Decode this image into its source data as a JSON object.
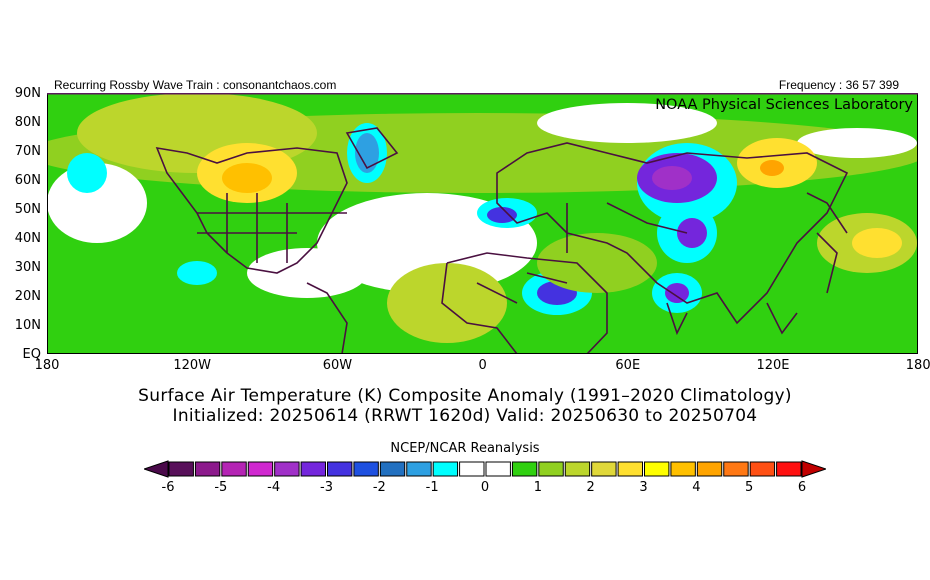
{
  "header": {
    "left": "Recurring Rossby Wave Train : consonantchaos.com",
    "right": "Frequency : 36 57 399"
  },
  "map": {
    "lab_label": "NOAA Physical Sciences Laboratory",
    "lat_labels": [
      "90N",
      "80N",
      "70N",
      "60N",
      "50N",
      "40N",
      "30N",
      "20N",
      "10N",
      "EQ"
    ],
    "lon_labels": [
      "180",
      "120W",
      "60W",
      "0",
      "60E",
      "120E",
      "180"
    ]
  },
  "title": {
    "line1": "Surface Air Temperature (K) Composite Anomaly (1991–2020 Climatology)",
    "line2": "Initialized: 20250614 (RRWT 1620d) Valid: 20250630 to 20250704"
  },
  "colorbar": {
    "title": "NCEP/NCAR Reanalysis",
    "labels": [
      "-6",
      "-5",
      "-4",
      "-3",
      "-2",
      "-1",
      "0",
      "1",
      "2",
      "3",
      "4",
      "5",
      "6"
    ],
    "range": [
      -6,
      6
    ],
    "step": 0.5,
    "colors": [
      "#58105a",
      "#8c1a8c",
      "#b424b4",
      "#d028d0",
      "#a030c8",
      "#7426dc",
      "#4432e0",
      "#1e50e0",
      "#2270c0",
      "#2ea0e2",
      "#00ffff",
      "#ffffff",
      "#ffffff",
      "#30d010",
      "#90d020",
      "#bcd62c",
      "#e0d83a",
      "#ffe030",
      "#ffff00",
      "#ffc000",
      "#ffa400",
      "#ff7814",
      "#ff5014",
      "#ff1010"
    ],
    "under_color": "#4a0a4a",
    "over_color": "#c00000"
  }
}
